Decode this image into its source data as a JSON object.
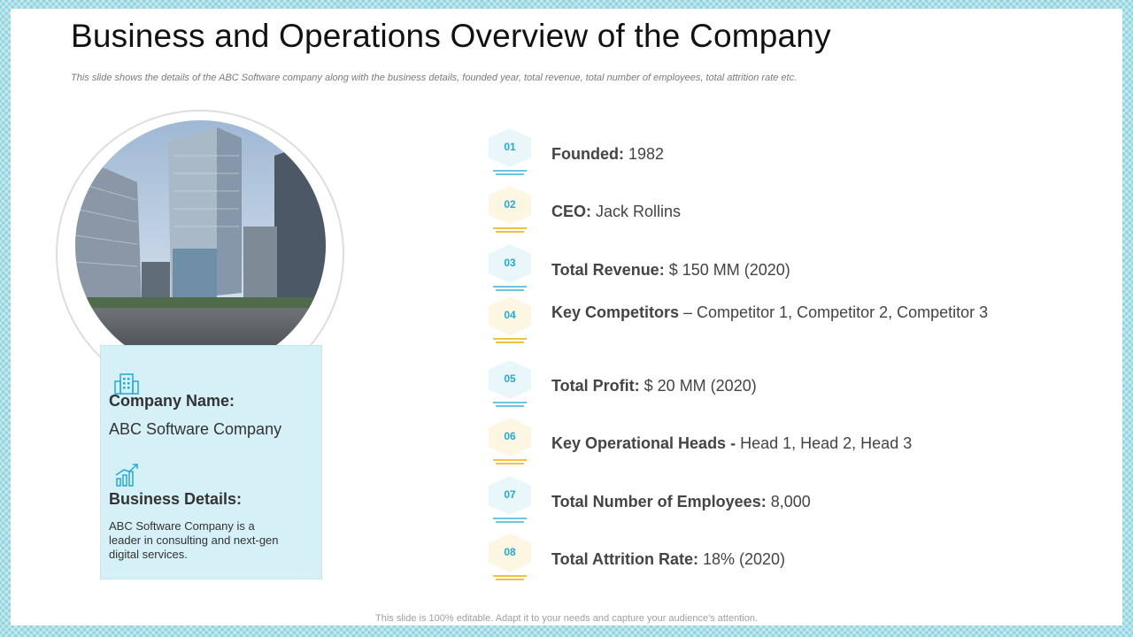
{
  "title": "Business and Operations Overview of the Company",
  "subtitle": "This slide shows the details of the ABC Software company along with the business details, founded year, total revenue, total number of employees, total attrition rate etc.",
  "card": {
    "company_label": "Company Name:",
    "company_value": "ABC Software Company",
    "business_label": "Business Details:",
    "business_text": "ABC Software Company is a leader in consulting and next-gen digital services.",
    "icons": [
      "building-icon",
      "growth-chart-icon"
    ]
  },
  "items": [
    {
      "num": "01",
      "label": "Founded:",
      "value": " 1982",
      "accent": "blue"
    },
    {
      "num": "02",
      "label": "CEO:",
      "value": " Jack Rollins",
      "accent": "yellow"
    },
    {
      "num": "03",
      "label": "Total Revenue:",
      "value": " $ 150 MM (2020)",
      "accent": "blue"
    },
    {
      "num": "04",
      "label": "Key Competitors",
      "value": " – Competitor 1, Competitor 2, Competitor 3",
      "accent": "yellow"
    },
    {
      "num": "05",
      "label": "Total Profit:",
      "value": " $ 20 MM  (2020)",
      "accent": "blue"
    },
    {
      "num": "06",
      "label": "Key Operational Heads -",
      "value": " Head 1, Head 2, Head 3",
      "accent": "yellow"
    },
    {
      "num": "07",
      "label": "Total Number of Employees:",
      "value": " 8,000",
      "accent": "blue"
    },
    {
      "num": "08",
      "label": "Total Attrition Rate:",
      "value": " 18% (2020)",
      "accent": "yellow"
    }
  ],
  "footer": "This slide is 100% editable. Adapt it to your needs and capture your audience's attention.",
  "colors": {
    "blue_accent": "#29a8cf",
    "yellow_accent": "#f1c143",
    "card_bg": "#d5f1f7",
    "frame": "#8fd3df"
  }
}
